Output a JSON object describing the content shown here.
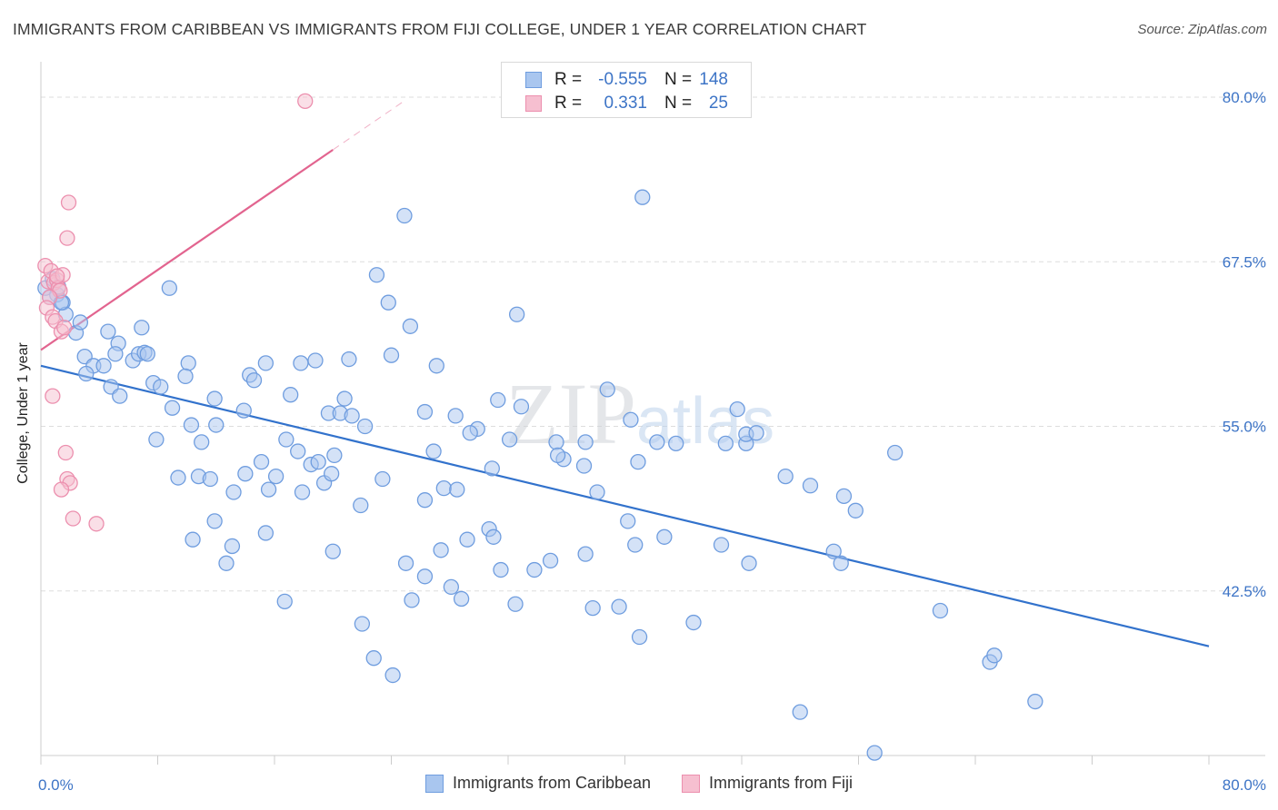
{
  "header": {
    "title": "IMMIGRANTS FROM CARIBBEAN VS IMMIGRANTS FROM FIJI COLLEGE, UNDER 1 YEAR CORRELATION CHART",
    "source": "Source: ZipAtlas.com"
  },
  "stats": {
    "rows": [
      {
        "r_label": "R =",
        "r_value": "-0.555",
        "n_label": "N =",
        "n_value": "148"
      },
      {
        "r_label": "R =",
        "r_value": "0.331",
        "n_label": "N =",
        "n_value": "25"
      }
    ]
  },
  "legend": {
    "items": [
      {
        "label": "Immigrants from Caribbean"
      },
      {
        "label": "Immigrants from Fiji"
      }
    ]
  },
  "colors": {
    "caribbean_fill": "#a9c6ef",
    "caribbean_stroke": "#6f9ddf",
    "caribbean_line": "#3272cc",
    "fiji_fill": "#f6bfd0",
    "fiji_stroke": "#ec8fae",
    "fiji_line": "#e2648f",
    "tick_label": "#3d74c6",
    "grid": "#dddddd"
  },
  "chart_data": {
    "type": "scatter",
    "title": "IMMIGRANTS FROM CARIBBEAN VS IMMIGRANTS FROM FIJI COLLEGE, UNDER 1 YEAR CORRELATION CHART",
    "xlabel": "",
    "ylabel": "College, Under 1 year",
    "xlim": [
      0,
      80
    ],
    "ylim": [
      30,
      82
    ],
    "x_tick_labels": [
      "0.0%",
      "80.0%"
    ],
    "y_ticks": [
      42.5,
      55.0,
      67.5,
      80.0
    ],
    "y_tick_labels": [
      "42.5%",
      "55.0%",
      "67.5%",
      "80.0%"
    ],
    "grid": true,
    "legend_position": "bottom",
    "watermark": "ZIPatlas",
    "series": [
      {
        "name": "Immigrants from Caribbean",
        "R": -0.555,
        "N": 148,
        "trend": {
          "x": [
            0.0,
            80.0
          ],
          "y": [
            59.6,
            38.3
          ]
        },
        "points": [
          [
            0.3,
            65.5
          ],
          [
            0.8,
            66.2
          ],
          [
            1.1,
            65.0
          ],
          [
            0.6,
            64.8
          ],
          [
            1.5,
            64.4
          ],
          [
            1.7,
            63.5
          ],
          [
            2.4,
            62.1
          ],
          [
            2.7,
            62.9
          ],
          [
            1.4,
            64.4
          ],
          [
            1.2,
            65.6
          ],
          [
            4.6,
            62.2
          ],
          [
            5.3,
            61.3
          ],
          [
            6.9,
            62.5
          ],
          [
            3.0,
            60.3
          ],
          [
            3.6,
            59.6
          ],
          [
            4.3,
            59.6
          ],
          [
            5.1,
            60.5
          ],
          [
            6.3,
            60.0
          ],
          [
            6.7,
            60.5
          ],
          [
            7.1,
            60.6
          ],
          [
            8.8,
            65.5
          ],
          [
            3.1,
            59.0
          ],
          [
            4.8,
            58.0
          ],
          [
            5.4,
            57.3
          ],
          [
            7.7,
            58.3
          ],
          [
            8.2,
            58.0
          ],
          [
            9.0,
            56.4
          ],
          [
            10.1,
            59.8
          ],
          [
            9.9,
            58.8
          ],
          [
            11.9,
            57.1
          ],
          [
            10.3,
            55.1
          ],
          [
            12.0,
            55.1
          ],
          [
            13.9,
            56.2
          ],
          [
            14.3,
            58.9
          ],
          [
            14.6,
            58.5
          ],
          [
            15.4,
            59.8
          ],
          [
            17.1,
            57.4
          ],
          [
            17.8,
            59.8
          ],
          [
            18.8,
            60.0
          ],
          [
            19.7,
            56.0
          ],
          [
            20.5,
            56.0
          ],
          [
            20.8,
            57.1
          ],
          [
            21.3,
            55.8
          ],
          [
            22.2,
            55.0
          ],
          [
            23.0,
            66.5
          ],
          [
            23.8,
            64.4
          ],
          [
            24.9,
            71.0
          ],
          [
            25.3,
            62.6
          ],
          [
            24.0,
            60.4
          ],
          [
            26.3,
            56.1
          ],
          [
            27.1,
            59.6
          ],
          [
            7.9,
            54.0
          ],
          [
            11.0,
            53.8
          ],
          [
            15.1,
            52.3
          ],
          [
            16.8,
            54.0
          ],
          [
            17.6,
            53.1
          ],
          [
            18.5,
            52.1
          ],
          [
            19.0,
            52.3
          ],
          [
            20.1,
            52.8
          ],
          [
            9.4,
            51.1
          ],
          [
            10.8,
            51.2
          ],
          [
            11.6,
            51.0
          ],
          [
            13.2,
            50.0
          ],
          [
            14.0,
            51.4
          ],
          [
            15.6,
            50.2
          ],
          [
            16.1,
            51.2
          ],
          [
            17.9,
            50.0
          ],
          [
            19.4,
            50.7
          ],
          [
            19.9,
            51.4
          ],
          [
            23.4,
            51.0
          ],
          [
            21.9,
            49.0
          ],
          [
            26.9,
            53.1
          ],
          [
            27.6,
            50.3
          ],
          [
            28.5,
            50.2
          ],
          [
            26.3,
            49.4
          ],
          [
            28.4,
            55.8
          ],
          [
            29.9,
            54.8
          ],
          [
            29.4,
            54.5
          ],
          [
            31.3,
            57.0
          ],
          [
            32.9,
            56.5
          ],
          [
            32.6,
            63.5
          ],
          [
            30.9,
            51.8
          ],
          [
            32.1,
            54.0
          ],
          [
            35.3,
            53.8
          ],
          [
            35.8,
            52.5
          ],
          [
            35.4,
            52.8
          ],
          [
            37.3,
            53.8
          ],
          [
            37.2,
            52.0
          ],
          [
            38.8,
            57.8
          ],
          [
            40.4,
            55.5
          ],
          [
            40.9,
            52.3
          ],
          [
            42.2,
            53.8
          ],
          [
            43.5,
            53.7
          ],
          [
            46.9,
            53.7
          ],
          [
            48.3,
            53.7
          ],
          [
            48.3,
            54.4
          ],
          [
            47.7,
            56.3
          ],
          [
            49.0,
            54.5
          ],
          [
            51.0,
            51.2
          ],
          [
            52.7,
            50.5
          ],
          [
            41.2,
            72.4
          ],
          [
            55.0,
            49.7
          ],
          [
            55.8,
            48.6
          ],
          [
            54.3,
            45.5
          ],
          [
            58.5,
            53.0
          ],
          [
            7.3,
            60.5
          ],
          [
            11.9,
            47.8
          ],
          [
            10.4,
            46.4
          ],
          [
            13.1,
            45.9
          ],
          [
            12.7,
            44.6
          ],
          [
            15.4,
            46.9
          ],
          [
            16.7,
            41.7
          ],
          [
            20.0,
            45.5
          ],
          [
            22.0,
            40.0
          ],
          [
            22.8,
            37.4
          ],
          [
            24.1,
            36.1
          ],
          [
            25.4,
            41.8
          ],
          [
            25.0,
            44.6
          ],
          [
            26.3,
            43.6
          ],
          [
            27.4,
            45.6
          ],
          [
            28.1,
            42.8
          ],
          [
            28.8,
            41.9
          ],
          [
            29.2,
            46.4
          ],
          [
            30.7,
            47.2
          ],
          [
            31.0,
            46.6
          ],
          [
            31.5,
            44.1
          ],
          [
            32.5,
            41.5
          ],
          [
            33.8,
            44.1
          ],
          [
            34.9,
            44.8
          ],
          [
            37.3,
            45.3
          ],
          [
            37.8,
            41.2
          ],
          [
            38.1,
            50.0
          ],
          [
            39.6,
            41.3
          ],
          [
            40.2,
            47.8
          ],
          [
            40.7,
            46.0
          ],
          [
            41.0,
            39.0
          ],
          [
            42.7,
            46.6
          ],
          [
            44.7,
            40.1
          ],
          [
            46.6,
            46.0
          ],
          [
            48.5,
            44.6
          ],
          [
            54.8,
            44.6
          ],
          [
            61.6,
            41.0
          ],
          [
            65.0,
            37.1
          ],
          [
            65.3,
            37.6
          ],
          [
            68.1,
            34.1
          ],
          [
            52.0,
            33.3
          ],
          [
            57.1,
            30.2
          ],
          [
            21.1,
            60.1
          ]
        ]
      },
      {
        "name": "Immigrants from Fiji",
        "R": 0.331,
        "N": 25,
        "trend": {
          "x": [
            0.0,
            20.0
          ],
          "y": [
            60.8,
            76.0
          ]
        },
        "trend_dashed_extension": {
          "x": [
            20.0,
            25.0
          ],
          "y": [
            76.0,
            79.8
          ]
        },
        "points": [
          [
            0.3,
            67.2
          ],
          [
            0.5,
            66.0
          ],
          [
            0.7,
            66.8
          ],
          [
            0.9,
            65.9
          ],
          [
            1.1,
            66.1
          ],
          [
            1.2,
            65.5
          ],
          [
            1.3,
            65.3
          ],
          [
            1.5,
            66.5
          ],
          [
            0.6,
            64.8
          ],
          [
            0.4,
            64.0
          ],
          [
            0.8,
            63.3
          ],
          [
            1.0,
            63.0
          ],
          [
            1.4,
            62.2
          ],
          [
            1.6,
            62.5
          ],
          [
            1.9,
            72.0
          ],
          [
            1.8,
            69.3
          ],
          [
            0.8,
            57.3
          ],
          [
            1.7,
            53.0
          ],
          [
            1.8,
            51.0
          ],
          [
            2.0,
            50.7
          ],
          [
            1.4,
            50.2
          ],
          [
            2.2,
            48.0
          ],
          [
            3.8,
            47.6
          ],
          [
            18.1,
            79.7
          ],
          [
            1.1,
            66.4
          ]
        ]
      }
    ]
  }
}
